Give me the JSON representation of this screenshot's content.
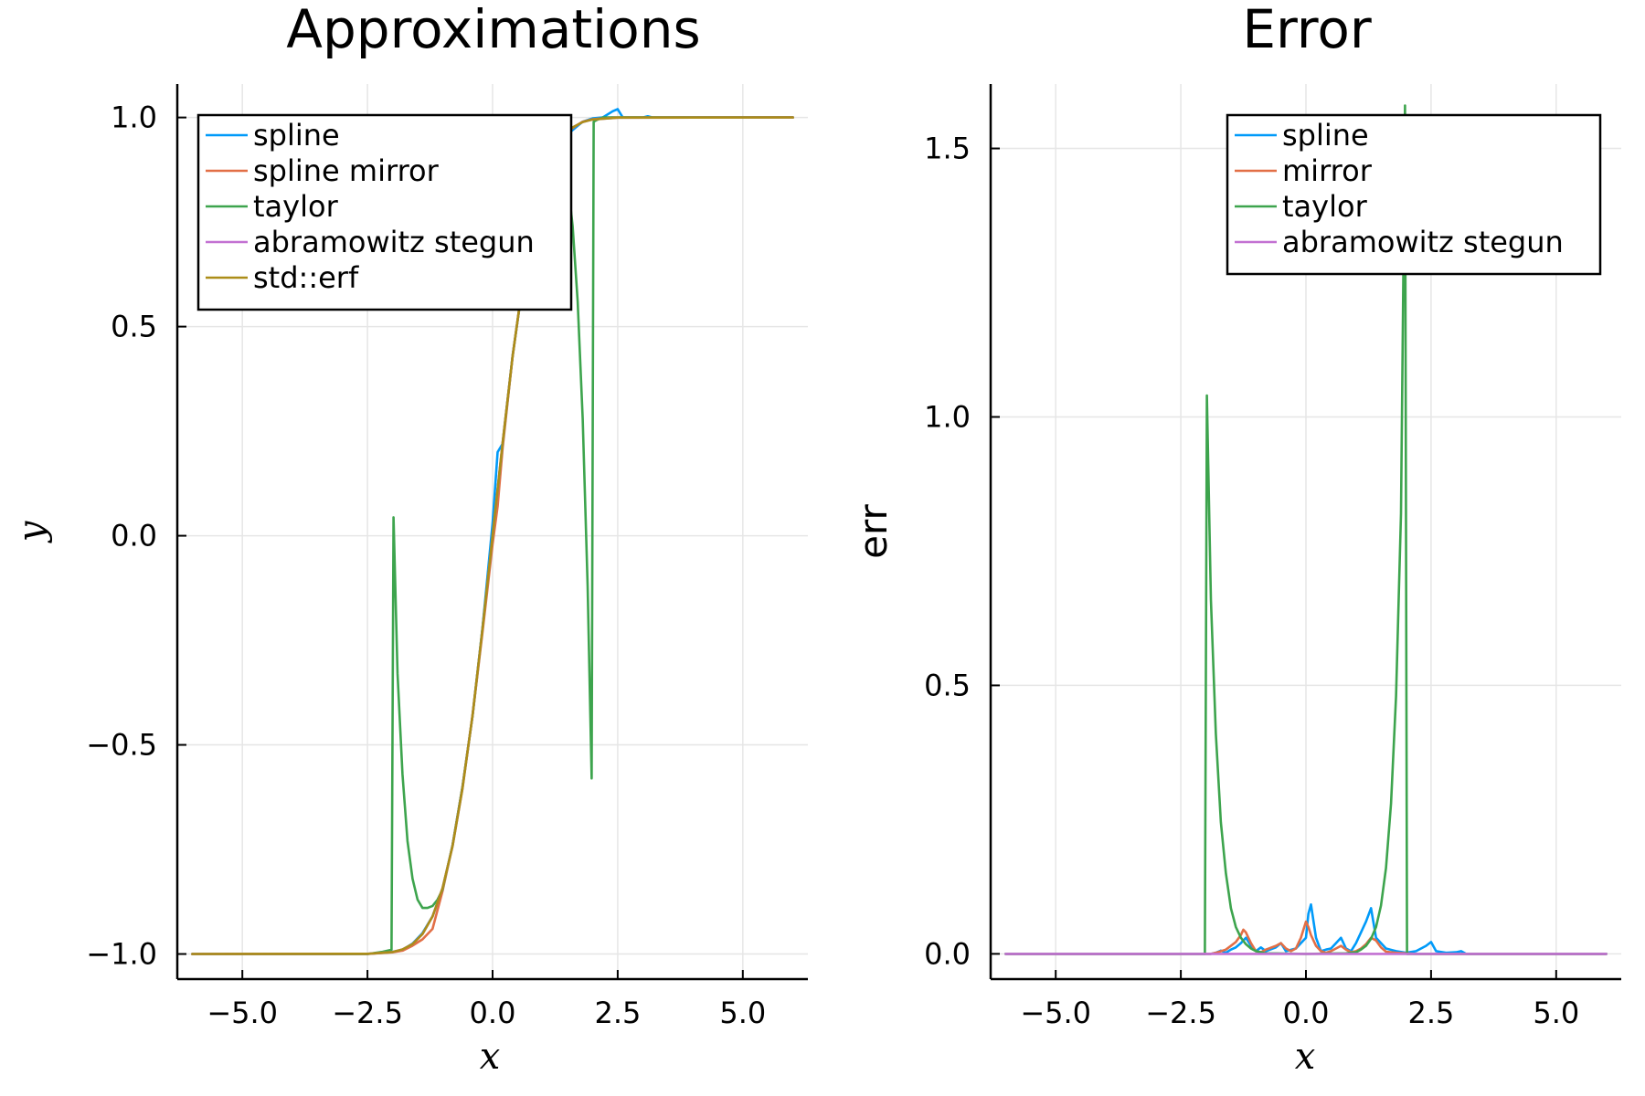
{
  "chart_data": [
    {
      "type": "line",
      "title": "Approximations",
      "xlabel": "x",
      "ylabel": "y",
      "xlim": [
        -6.3,
        6.3
      ],
      "ylim": [
        -1.06,
        1.08
      ],
      "xticks": [
        -5,
        -2.5,
        0,
        2.5,
        5
      ],
      "xtick_labels": [
        "−5.0",
        "−2.5",
        "0.0",
        "2.5",
        "5.0"
      ],
      "yticks": [
        -1,
        -0.5,
        0,
        0.5,
        1
      ],
      "ytick_labels": [
        "−1.0",
        "−0.5",
        "0.0",
        "0.5",
        "1.0"
      ],
      "grid": true,
      "legend_position": "top-left",
      "series": [
        {
          "name": "spline",
          "color": "#009af9",
          "x": [
            -6,
            -2.5,
            -2.0,
            -1.8,
            -1.6,
            -1.4,
            -1.2,
            -1.0,
            -0.8,
            -0.6,
            -0.4,
            -0.2,
            0.0,
            0.1,
            0.2,
            0.4,
            0.6,
            0.8,
            1.0,
            1.2,
            1.4,
            1.6,
            1.8,
            2.0,
            2.2,
            2.4,
            2.5,
            2.6,
            2.8,
            3.0,
            3.1,
            3.2,
            6
          ],
          "y": [
            -1.0,
            -1.0,
            -0.995,
            -0.99,
            -0.975,
            -0.95,
            -0.91,
            -0.845,
            -0.74,
            -0.6,
            -0.43,
            -0.22,
            0.03,
            0.2,
            0.22,
            0.43,
            0.6,
            0.74,
            0.845,
            0.91,
            0.95,
            0.97,
            0.99,
            0.998,
            1.0,
            1.015,
            1.02,
            1.0,
            1.0,
            1.0,
            1.003,
            1.0,
            1.0
          ]
        },
        {
          "name": "spline mirror",
          "color": "#e26f46",
          "x": [
            -6,
            -2.5,
            -2.0,
            -1.8,
            -1.6,
            -1.4,
            -1.2,
            -1.0,
            -0.8,
            -0.6,
            -0.4,
            -0.2,
            0.0,
            0.1,
            0.2,
            0.4,
            0.6,
            0.8,
            1.0,
            1.2,
            1.4,
            1.6,
            1.8,
            2.0,
            2.4,
            6
          ],
          "y": [
            -1.0,
            -1.0,
            -0.996,
            -0.992,
            -0.98,
            -0.965,
            -0.94,
            -0.85,
            -0.74,
            -0.6,
            -0.43,
            -0.23,
            -0.02,
            0.07,
            0.21,
            0.43,
            0.6,
            0.74,
            0.845,
            0.915,
            0.955,
            0.975,
            0.99,
            0.996,
            1.0,
            1.0
          ]
        },
        {
          "name": "taylor",
          "color": "#3da44d",
          "x": [
            -6,
            -2.5,
            -2.2,
            -2.02,
            -1.98,
            -1.9,
            -1.8,
            -1.7,
            -1.6,
            -1.5,
            -1.4,
            -1.3,
            -1.2,
            -1.1,
            -1.0,
            -0.8,
            -0.6,
            -0.4,
            -0.2,
            0.0,
            0.2,
            0.4,
            0.6,
            0.8,
            1.0,
            1.2,
            1.4,
            1.5,
            1.6,
            1.7,
            1.8,
            1.9,
            1.98,
            2.02,
            2.1,
            2.2,
            2.5,
            6
          ],
          "y": [
            -1.0,
            -1.0,
            -0.995,
            -0.99,
            0.044,
            -0.33,
            -0.57,
            -0.73,
            -0.82,
            -0.87,
            -0.89,
            -0.89,
            -0.885,
            -0.87,
            -0.846,
            -0.74,
            -0.6,
            -0.43,
            -0.22,
            0.0,
            0.22,
            0.43,
            0.6,
            0.74,
            0.85,
            0.92,
            0.9,
            0.85,
            0.74,
            0.56,
            0.28,
            -0.12,
            -0.58,
            0.99,
            0.995,
            1.0,
            1.0,
            1.0
          ]
        },
        {
          "name": "abramowitz stegun",
          "color": "#c271d2",
          "x": [
            -6,
            -2.5,
            -2.0,
            -1.8,
            -1.6,
            -1.4,
            -1.2,
            -1.0,
            -0.8,
            -0.6,
            -0.4,
            -0.2,
            0.0,
            0.2,
            0.4,
            0.6,
            0.8,
            1.0,
            1.2,
            1.4,
            1.6,
            1.8,
            2.0,
            2.5,
            6
          ],
          "y": [
            -1.0,
            -0.9996,
            -0.9953,
            -0.9891,
            -0.9763,
            -0.9523,
            -0.9103,
            -0.8427,
            -0.7421,
            -0.6039,
            -0.4284,
            -0.2227,
            0.0,
            0.2227,
            0.4284,
            0.6039,
            0.7421,
            0.8427,
            0.9103,
            0.9523,
            0.9763,
            0.9891,
            0.9953,
            0.9996,
            1.0
          ]
        },
        {
          "name": "std::erf",
          "color": "#ac8d18",
          "x": [
            -6,
            -2.5,
            -2.0,
            -1.8,
            -1.6,
            -1.4,
            -1.2,
            -1.0,
            -0.8,
            -0.6,
            -0.4,
            -0.2,
            0.0,
            0.2,
            0.4,
            0.6,
            0.8,
            1.0,
            1.2,
            1.4,
            1.6,
            1.8,
            2.0,
            2.5,
            6
          ],
          "y": [
            -1.0,
            -0.9996,
            -0.9953,
            -0.9891,
            -0.9763,
            -0.9523,
            -0.9103,
            -0.8427,
            -0.7421,
            -0.6039,
            -0.4284,
            -0.2227,
            0.0,
            0.2227,
            0.4284,
            0.6039,
            0.7421,
            0.8427,
            0.9103,
            0.9523,
            0.9763,
            0.9891,
            0.9953,
            0.9996,
            1.0
          ]
        }
      ]
    },
    {
      "type": "line",
      "title": "Error",
      "xlabel": "x",
      "ylabel": "err",
      "xlim": [
        -6.3,
        6.3
      ],
      "ylim": [
        -0.047,
        1.62
      ],
      "xticks": [
        -5,
        -2.5,
        0,
        2.5,
        5
      ],
      "xtick_labels": [
        "−5.0",
        "−2.5",
        "0.0",
        "2.5",
        "5.0"
      ],
      "yticks": [
        0,
        0.5,
        1,
        1.5
      ],
      "ytick_labels": [
        "0.0",
        "0.5",
        "1.0",
        "1.5"
      ],
      "grid": true,
      "legend_position": "top-right",
      "series": [
        {
          "name": "spline",
          "color": "#009af9",
          "x": [
            -6,
            -1.9,
            -1.8,
            -1.7,
            -1.6,
            -1.5,
            -1.4,
            -1.3,
            -1.2,
            -1.1,
            -1.0,
            -0.9,
            -0.8,
            -0.6,
            -0.5,
            -0.4,
            -0.2,
            0.0,
            0.05,
            0.1,
            0.2,
            0.3,
            0.4,
            0.5,
            0.6,
            0.7,
            0.8,
            0.9,
            1.0,
            1.1,
            1.2,
            1.3,
            1.4,
            1.6,
            1.8,
            2.0,
            2.2,
            2.4,
            2.5,
            2.6,
            2.8,
            3.0,
            3.1,
            3.2,
            6
          ],
          "y": [
            0.0,
            0.0,
            0.002,
            0.006,
            0.002,
            0.008,
            0.012,
            0.02,
            0.03,
            0.015,
            0.005,
            0.012,
            0.005,
            0.012,
            0.02,
            0.005,
            0.01,
            0.03,
            0.075,
            0.092,
            0.03,
            0.005,
            0.008,
            0.01,
            0.02,
            0.03,
            0.01,
            0.005,
            0.02,
            0.04,
            0.06,
            0.085,
            0.03,
            0.01,
            0.005,
            0.002,
            0.005,
            0.015,
            0.022,
            0.005,
            0.002,
            0.003,
            0.005,
            0.0,
            0.0
          ]
        },
        {
          "name": "mirror",
          "color": "#e26f46",
          "x": [
            -6,
            -1.9,
            -1.8,
            -1.6,
            -1.5,
            -1.4,
            -1.3,
            -1.25,
            -1.2,
            -1.1,
            -1.0,
            -0.9,
            -0.8,
            -0.6,
            -0.5,
            -0.4,
            -0.3,
            -0.2,
            -0.1,
            0.0,
            0.05,
            0.1,
            0.2,
            0.3,
            0.4,
            0.5,
            0.6,
            0.7,
            0.8,
            0.9,
            1.0,
            1.1,
            1.2,
            1.3,
            1.4,
            1.5,
            1.6,
            1.8,
            2.0,
            2.2,
            2.5,
            6
          ],
          "y": [
            0.0,
            0.0,
            0.002,
            0.008,
            0.015,
            0.022,
            0.035,
            0.045,
            0.04,
            0.02,
            0.005,
            0.003,
            0.008,
            0.015,
            0.02,
            0.01,
            0.005,
            0.01,
            0.03,
            0.06,
            0.05,
            0.035,
            0.015,
            0.005,
            0.002,
            0.005,
            0.01,
            0.015,
            0.008,
            0.003,
            0.005,
            0.01,
            0.018,
            0.03,
            0.025,
            0.012,
            0.004,
            0.002,
            0.001,
            0.0,
            0.0,
            0.0
          ]
        },
        {
          "name": "taylor",
          "color": "#3da44d",
          "x": [
            -6,
            -2.5,
            -2.2,
            -2.02,
            -1.98,
            -1.9,
            -1.8,
            -1.7,
            -1.6,
            -1.5,
            -1.4,
            -1.3,
            -1.2,
            -1.1,
            -1.0,
            -0.8,
            0.0,
            0.8,
            1.0,
            1.1,
            1.2,
            1.3,
            1.4,
            1.5,
            1.6,
            1.7,
            1.8,
            1.9,
            1.98,
            2.02,
            2.1,
            2.2,
            2.5,
            6
          ],
          "y": [
            0.0,
            0.0,
            0.0,
            0.0,
            1.04,
            0.66,
            0.41,
            0.245,
            0.15,
            0.085,
            0.05,
            0.03,
            0.018,
            0.01,
            0.005,
            0.001,
            0.0,
            0.001,
            0.003,
            0.008,
            0.015,
            0.028,
            0.05,
            0.09,
            0.16,
            0.28,
            0.48,
            0.82,
            1.58,
            0.0,
            0.0,
            0.0,
            0.0,
            0.0
          ]
        },
        {
          "name": "abramowitz stegun",
          "color": "#c271d2",
          "x": [
            -6,
            6
          ],
          "y": [
            0.0,
            0.0
          ]
        }
      ]
    }
  ]
}
